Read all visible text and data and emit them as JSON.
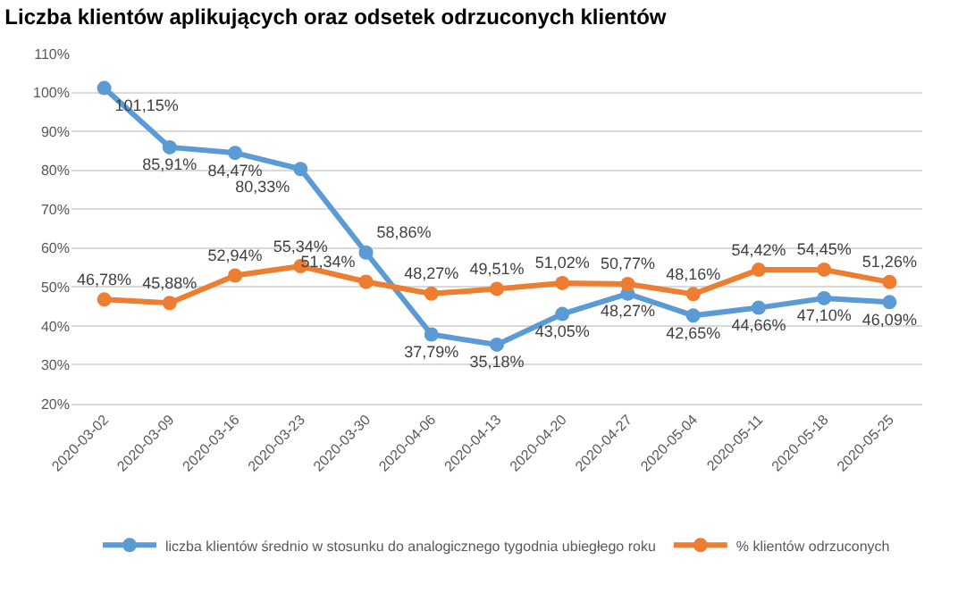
{
  "chart_data": {
    "type": "line",
    "title": "Liczba klientów aplikujących oraz odsetek odrzuconych klientów",
    "categories": [
      "2020-03-02",
      "2020-03-09",
      "2020-03-16",
      "2020-03-23",
      "2020-03-30",
      "2020-04-06",
      "2020-04-13",
      "2020-04-20",
      "2020-04-27",
      "2020-05-04",
      "2020-05-11",
      "2020-05-18",
      "2020-05-25"
    ],
    "series": [
      {
        "name": "liczba klientów średnio w stosunku do analogicznego tygodnia ubiegłego roku",
        "color": "#5b9bd5",
        "values": [
          101.15,
          85.91,
          84.47,
          80.33,
          58.86,
          37.79,
          35.18,
          43.05,
          48.27,
          42.65,
          44.66,
          47.1,
          46.09
        ],
        "value_labels": [
          "101,15%",
          "85,91%",
          "84,47%",
          "80,33%",
          "58,86%",
          "37,79%",
          "35,18%",
          "43,05%",
          "48,27%",
          "42,65%",
          "44,66%",
          "47,10%",
          "46,09%"
        ]
      },
      {
        "name": "% klientów odrzuconych",
        "color": "#ed7d31",
        "values": [
          46.78,
          45.88,
          52.94,
          55.34,
          51.34,
          48.27,
          49.51,
          51.02,
          50.77,
          48.16,
          54.42,
          54.45,
          51.26
        ],
        "value_labels": [
          "46,78%",
          "45,88%",
          "52,94%",
          "55,34%",
          "51,34%",
          "48,27%",
          "49,51%",
          "51,02%",
          "50,77%",
          "48,16%",
          "54,42%",
          "54,45%",
          "51,26%"
        ]
      }
    ],
    "ylim": [
      20,
      110
    ],
    "yticks": [
      {
        "value": 20,
        "label": "20%"
      },
      {
        "value": 30,
        "label": "30%"
      },
      {
        "value": 40,
        "label": "40%"
      },
      {
        "value": 50,
        "label": "50%"
      },
      {
        "value": 60,
        "label": "60%"
      },
      {
        "value": 70,
        "label": "70%"
      },
      {
        "value": 80,
        "label": "80%"
      },
      {
        "value": 90,
        "label": "90%"
      },
      {
        "value": 100,
        "label": "100%"
      },
      {
        "value": 110,
        "label": "110%"
      }
    ],
    "grid": "y",
    "legend": "bottom",
    "marker": "circle",
    "line_style": "solid"
  }
}
